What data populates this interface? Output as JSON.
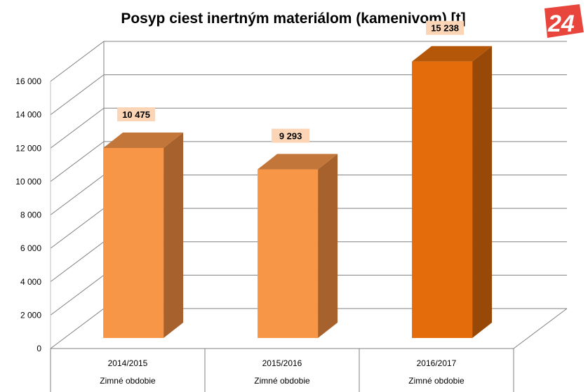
{
  "chart_data": {
    "type": "bar",
    "title": "Posyp ciest inertným materiálom (kamenivom) [t]",
    "categories": [
      "2014/2015",
      "2015/2016",
      "2016/2017"
    ],
    "category_sublabels": [
      "Zimné obdobie",
      "Zimné obdobie",
      "Zimné obdobie"
    ],
    "values": [
      10475,
      9293,
      15238
    ],
    "value_labels": [
      "10 475",
      "9 293",
      "15 238"
    ],
    "yticks": [
      "0",
      "2000",
      "4000",
      "6000",
      "8000",
      "10000",
      "12000",
      "14000",
      "16000"
    ],
    "ylim": [
      0,
      16000
    ],
    "grid": true,
    "style": "3d-column",
    "colors": {
      "bar_front": [
        "#f79646",
        "#f79646",
        "#e46c0a"
      ],
      "bar_side": [
        "#a6612c",
        "#a6612c",
        "#984807"
      ],
      "bar_top": [
        "#c2763a",
        "#c2763a",
        "#b55709"
      ],
      "label_box": "#fbd5b5",
      "grid": "#808080"
    }
  },
  "logo": {
    "text": "24",
    "color": "#e8453c"
  }
}
